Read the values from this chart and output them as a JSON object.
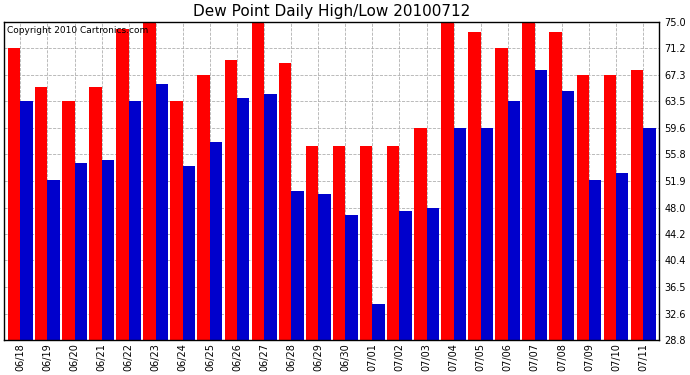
{
  "title": "Dew Point Daily High/Low 20100712",
  "copyright": "Copyright 2010 Cartronics.com",
  "dates": [
    "06/18",
    "06/19",
    "06/20",
    "06/21",
    "06/22",
    "06/23",
    "06/24",
    "06/25",
    "06/26",
    "06/27",
    "06/28",
    "06/29",
    "06/30",
    "07/01",
    "07/02",
    "07/03",
    "07/04",
    "07/05",
    "07/06",
    "07/07",
    "07/08",
    "07/09",
    "07/10",
    "07/11"
  ],
  "highs": [
    71.2,
    65.5,
    63.5,
    65.5,
    74.0,
    75.0,
    63.5,
    67.3,
    69.5,
    75.0,
    69.0,
    57.0,
    57.0,
    57.0,
    57.0,
    59.6,
    75.0,
    73.5,
    71.2,
    76.5,
    73.5,
    67.3,
    67.3,
    68.0
  ],
  "lows": [
    63.5,
    52.0,
    54.5,
    55.0,
    63.5,
    66.0,
    54.0,
    57.5,
    64.0,
    64.5,
    50.5,
    50.0,
    47.0,
    34.0,
    47.5,
    48.0,
    59.6,
    59.6,
    63.5,
    68.0,
    65.0,
    52.0,
    53.0,
    59.6
  ],
  "ymin": 28.8,
  "ymax": 75.0,
  "yticks": [
    28.8,
    32.6,
    36.5,
    40.4,
    44.2,
    48.0,
    51.9,
    55.8,
    59.6,
    63.5,
    67.3,
    71.2,
    75.0
  ],
  "bar_width": 0.46,
  "high_color": "#ff0000",
  "low_color": "#0000cc",
  "bg_color": "#ffffff",
  "grid_color": "#b0b0b0",
  "title_fontsize": 11,
  "copyright_fontsize": 6.5,
  "tick_fontsize": 7,
  "figwidth": 6.9,
  "figheight": 3.75,
  "dpi": 100
}
